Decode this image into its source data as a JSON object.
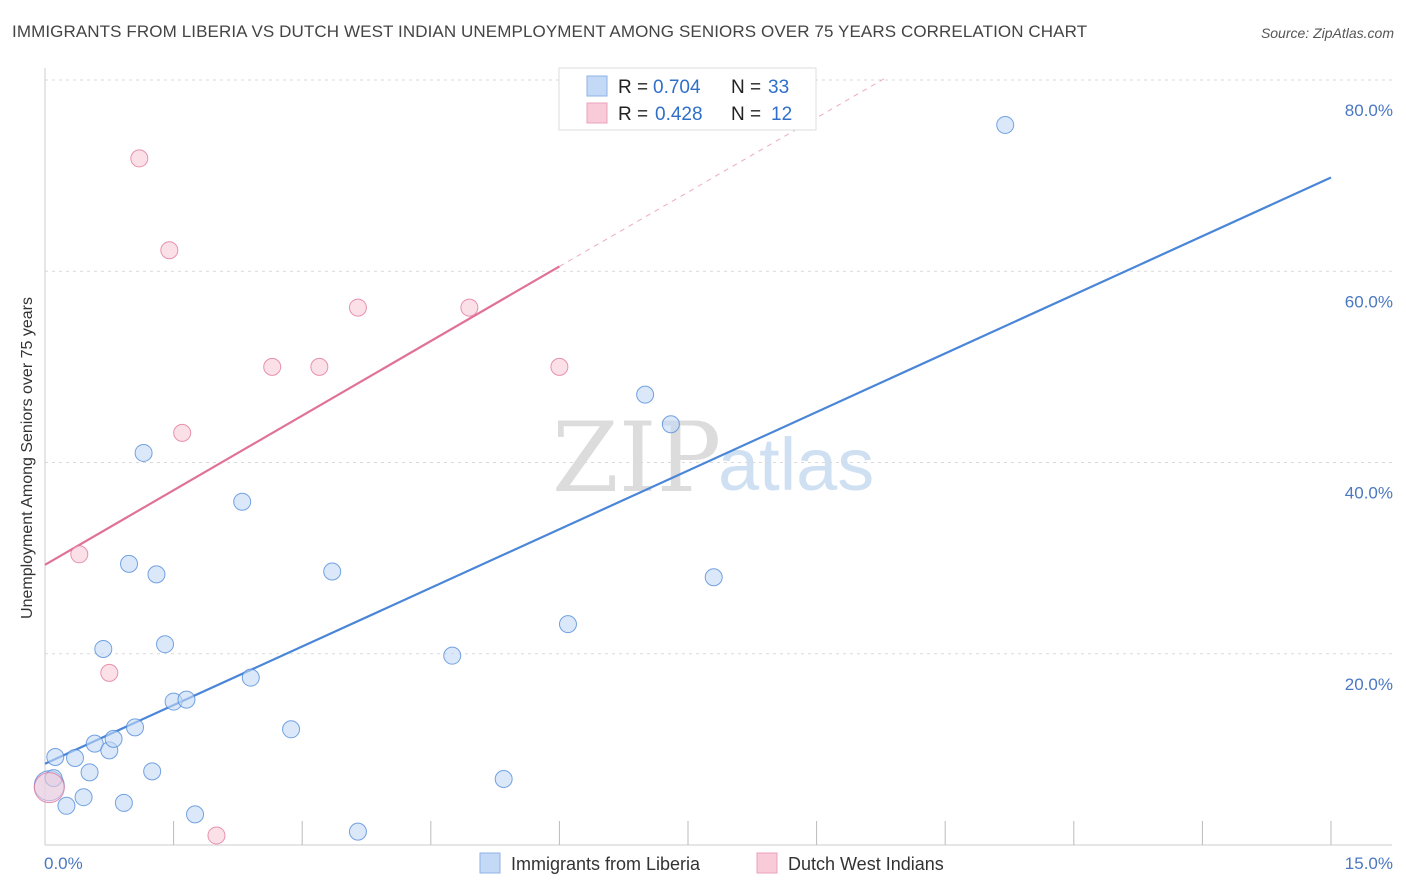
{
  "title": "IMMIGRANTS FROM LIBERIA VS DUTCH WEST INDIAN UNEMPLOYMENT AMONG SENIORS OVER 75 YEARS CORRELATION CHART",
  "source": "Source: ZipAtlas.com",
  "watermark": {
    "zip": "ZIP",
    "atlas": "atlas"
  },
  "legend_top": [
    {
      "r_label": "R =",
      "r_value": "0.704",
      "n_label": "N =",
      "n_value": "33",
      "color": "#a9c8f0"
    },
    {
      "r_label": "R =",
      "r_value": "0.428",
      "n_label": "N =",
      "n_value": "12",
      "color": "#f6b7cb"
    }
  ],
  "chart_data": {
    "type": "scatter",
    "title": "IMMIGRANTS FROM LIBERIA VS DUTCH WEST INDIAN UNEMPLOYMENT AMONG SENIORS OVER 75 YEARS CORRELATION CHART",
    "xlabel": "",
    "ylabel": "Unemployment Among Seniors over 75 years",
    "xlim": [
      0,
      15
    ],
    "ylim": [
      0,
      80
    ],
    "x_tick_labels": [
      "0.0%",
      "15.0%"
    ],
    "y_tick_labels": [
      "20.0%",
      "40.0%",
      "60.0%",
      "80.0%"
    ],
    "y_ticks": [
      20,
      40,
      60,
      80
    ],
    "series": [
      {
        "name": "Immigrants from Liberia",
        "color": "#4a86d8",
        "fill": "#c3d9f5",
        "points": [
          [
            0.05,
            6.2
          ],
          [
            0.1,
            7.0
          ],
          [
            0.12,
            9.2
          ],
          [
            0.25,
            4.1
          ],
          [
            0.35,
            9.1
          ],
          [
            0.45,
            5.0
          ],
          [
            0.52,
            7.6
          ],
          [
            0.58,
            10.6
          ],
          [
            0.68,
            20.5
          ],
          [
            0.75,
            9.9
          ],
          [
            0.8,
            11.1
          ],
          [
            0.92,
            4.4
          ],
          [
            0.98,
            29.4
          ],
          [
            1.05,
            12.3
          ],
          [
            1.15,
            41.0
          ],
          [
            1.25,
            7.7
          ],
          [
            1.3,
            28.3
          ],
          [
            1.4,
            21.0
          ],
          [
            1.5,
            15.0
          ],
          [
            1.65,
            15.2
          ],
          [
            1.75,
            3.2
          ],
          [
            2.3,
            35.9
          ],
          [
            2.4,
            17.5
          ],
          [
            2.87,
            12.1
          ],
          [
            3.35,
            28.6
          ],
          [
            3.65,
            1.4
          ],
          [
            4.75,
            19.8
          ],
          [
            5.35,
            6.9
          ],
          [
            6.1,
            23.1
          ],
          [
            7.0,
            47.1
          ],
          [
            7.3,
            44.0
          ],
          [
            7.8,
            28.0
          ],
          [
            11.2,
            75.3
          ]
        ]
      },
      {
        "name": "Dutch West Indians",
        "color": "#e07298",
        "fill": "#f9cbd9",
        "points": [
          [
            0.05,
            6.0
          ],
          [
            0.4,
            30.4
          ],
          [
            0.75,
            18.0
          ],
          [
            1.1,
            71.8
          ],
          [
            1.45,
            62.2
          ],
          [
            1.6,
            43.1
          ],
          [
            2.0,
            1.0
          ],
          [
            2.65,
            50.0
          ],
          [
            3.2,
            50.0
          ],
          [
            3.65,
            56.2
          ],
          [
            4.95,
            56.2
          ],
          [
            6.0,
            50.0
          ]
        ]
      }
    ],
    "trend_lines": [
      {
        "series": "Immigrants from Liberia",
        "x": [
          0,
          15
        ],
        "y": [
          8.5,
          69.8
        ],
        "style": "solid"
      },
      {
        "series": "Dutch West Indians",
        "x": [
          0,
          6.0
        ],
        "y": [
          29.3,
          60.5
        ],
        "style": "solid"
      },
      {
        "series": "Dutch West Indians",
        "x": [
          6.0,
          9.8
        ],
        "y": [
          60.5,
          80.2
        ],
        "style": "dashed"
      }
    ]
  },
  "legend_bottom": [
    {
      "label": "Immigrants from Liberia",
      "color": "#c3d9f5",
      "border": "#4a86d8"
    },
    {
      "label": "Dutch West Indians",
      "color": "#f9cbd9",
      "border": "#e07298"
    }
  ]
}
